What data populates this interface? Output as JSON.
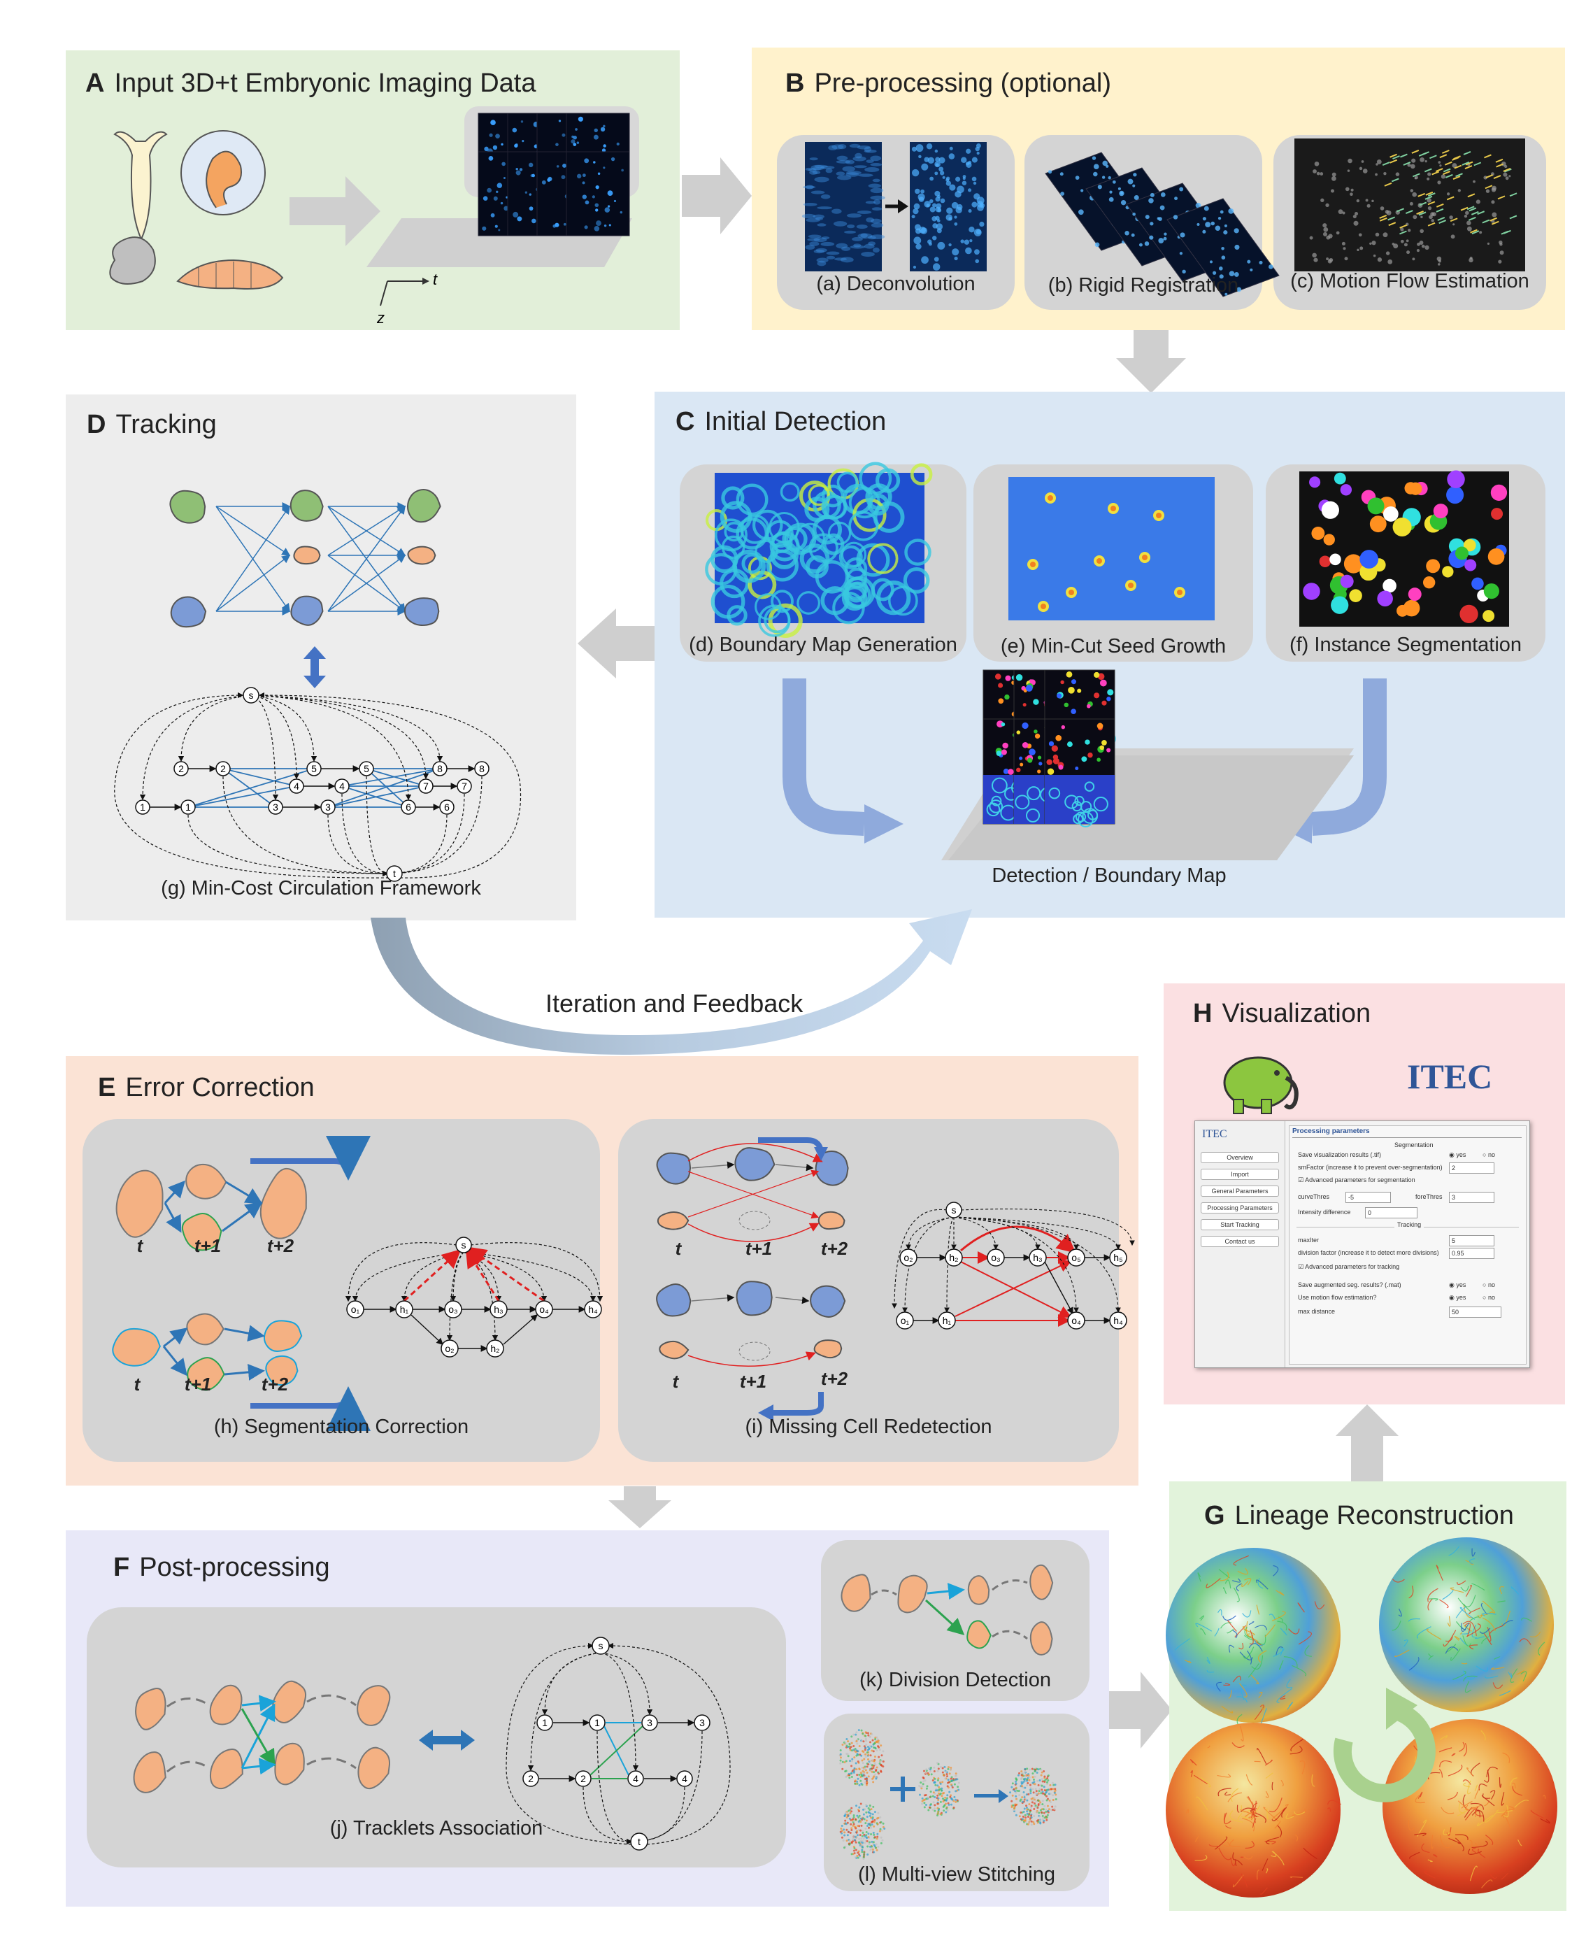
{
  "panels": {
    "A": {
      "letter": "A",
      "title": "Input 3D+t Embryonic Imaging Data",
      "axis_t": "t",
      "axis_z": "z"
    },
    "B": {
      "letter": "B",
      "title": "Pre-processing (optional)",
      "captions": [
        "(a) Deconvolution",
        "(b) Rigid Registration",
        "(c) Motion Flow Estimation"
      ]
    },
    "C": {
      "letter": "C",
      "title": "Initial Detection",
      "captions": [
        "(d) Boundary Map Generation",
        "(e) Min-Cut Seed Growth",
        "(f) Instance Segmentation"
      ],
      "result_label": "Detection / Boundary Map"
    },
    "D": {
      "letter": "D",
      "title": "Tracking",
      "caption": "(g) Min-Cost Circulation Framework"
    },
    "iteration_label": "Iteration and Feedback",
    "E": {
      "letter": "E",
      "title": "Error Correction",
      "captions": [
        "(h) Segmentation Correction",
        "(i) Missing Cell Redetection"
      ],
      "time_labels": [
        "t",
        "t+1",
        "t+2"
      ]
    },
    "F": {
      "letter": "F",
      "title": "Post-processing",
      "captions": [
        "(j) Tracklets Association",
        "(k) Division Detection",
        "(l) Multi-view Stitching"
      ]
    },
    "G": {
      "letter": "G",
      "title": "Lineage Reconstruction"
    },
    "H": {
      "letter": "H",
      "title": "Visualization",
      "logo_text": "ITEC"
    }
  },
  "graph_nodes": {
    "source": "s",
    "sink": "t",
    "numbers": [
      "1",
      "2",
      "3",
      "4",
      "5",
      "6",
      "7",
      "8"
    ]
  },
  "itec_ui": {
    "sidebar_title": "ITEC",
    "sidebar_buttons": [
      "Overview",
      "Import",
      "General Parameters",
      "Processing Parameters",
      "Start Tracking",
      "Contact us"
    ],
    "panel_heading": "Processing parameters",
    "section_segmentation": "Segmentation",
    "save_vis": "Save visualization results (.tif)",
    "smfactor": "smFactor (increase it to prevent over-segmentation)",
    "smfactor_val": "2",
    "adv_seg": "Advanced parameters for segmentation",
    "curvethres": "curveThres",
    "curvethres_val": "-5",
    "forethres": "foreThres",
    "forethres_val": "3",
    "intensity": "Intensity difference",
    "intensity_val": "0",
    "section_tracking": "Tracking",
    "maxiter": "maxIter",
    "maxiter_val": "5",
    "division": "division factor (increase it to detect more divisions)",
    "division_val": "0.95",
    "adv_track": "Advanced parameters for tracking",
    "save_aug": "Save augmented seg. results? (.mat)",
    "use_motion": "Use motion flow estimation?",
    "max_distance": "max distance",
    "max_distance_val": "50",
    "yes": "yes",
    "no": "no"
  },
  "colors": {
    "panel_A": "#e2efd9",
    "panel_B": "#fff2cc",
    "panel_C": "#dae7f4",
    "panel_D": "#ededed",
    "panel_E": "#fbe3d5",
    "panel_F": "#e8e8f8",
    "panel_G": "#e2f3db",
    "panel_H": "#fbe0e2",
    "arrow_gray": "#cfcfcf",
    "arrow_blue": "#8faadc",
    "cell_green": "#8fbf75",
    "cell_orange": "#f4b183",
    "cell_blue": "#7c9bd6",
    "edge_blue": "#2e75b6",
    "edge_green": "#2ca24f",
    "edge_red": "#e02020"
  }
}
